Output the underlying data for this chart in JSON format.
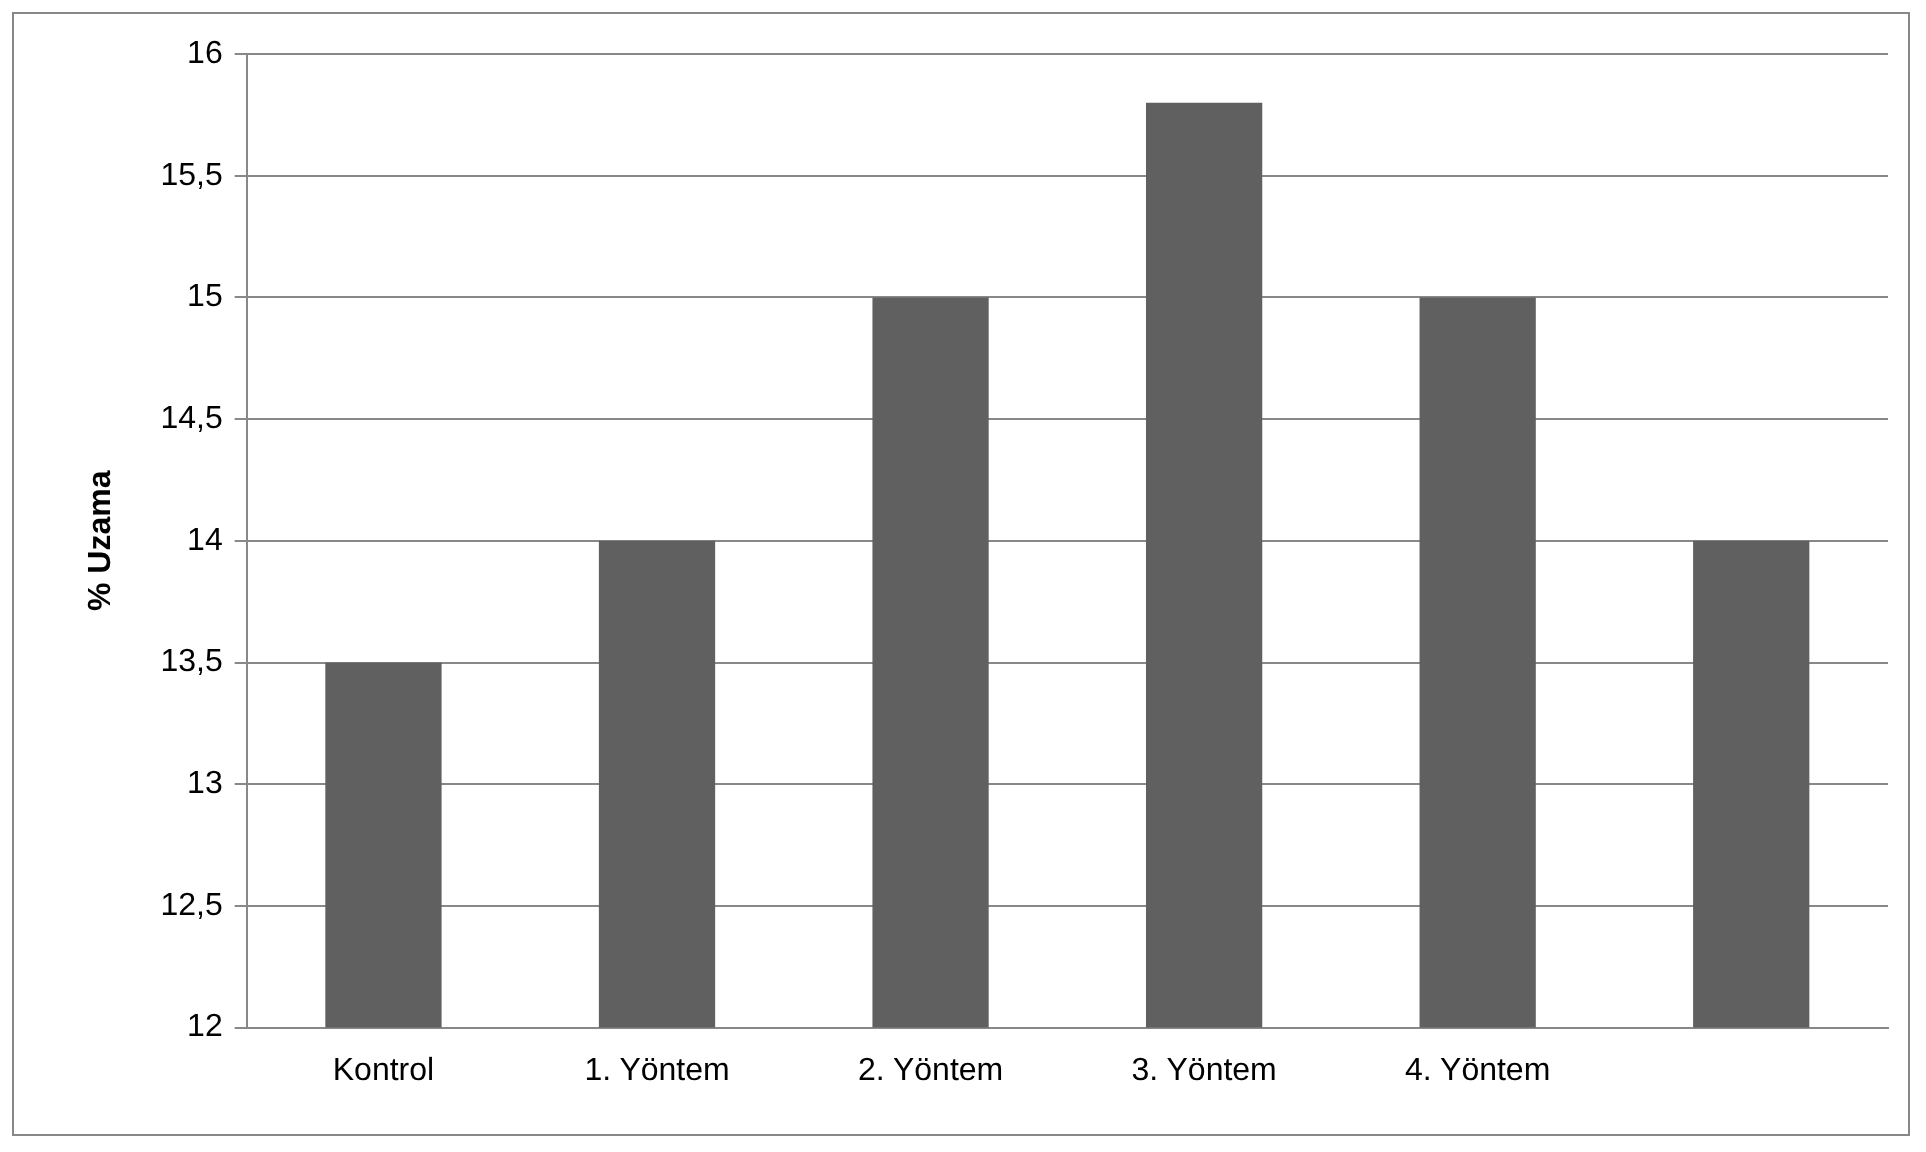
{
  "chart_data": {
    "type": "bar",
    "ylabel": "% Uzama",
    "categories": [
      "Kontrol",
      "1. Yöntem",
      "2. Yöntem",
      "3. Yöntem",
      "4. Yöntem",
      null
    ],
    "values": [
      13.5,
      14,
      15,
      15.8,
      15,
      14
    ],
    "color": "#606060",
    "ylim": [
      12,
      16
    ],
    "yticks": [
      12,
      {
        "value": 12.5,
        "label": "12,5"
      },
      13,
      {
        "value": 13.5,
        "label": "13,5"
      },
      14,
      {
        "value": 14.5,
        "label": "14,5"
      },
      15,
      {
        "value": 15.5,
        "label": "15,5"
      },
      16
    ],
    "grid": "y",
    "legend": false
  }
}
